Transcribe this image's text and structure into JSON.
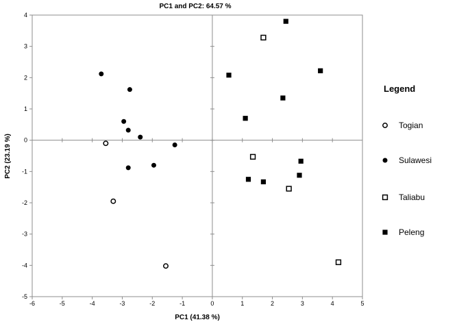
{
  "chart_data": {
    "type": "scatter",
    "title": "PC1 and PC2: 64.57 %",
    "xlabel": "PC1 (41.38 %)",
    "ylabel": "PC2 (23.19 %)",
    "xlim": [
      -6,
      5
    ],
    "ylim": [
      -5,
      4
    ],
    "x_ticks": [
      -6,
      -5,
      -4,
      -3,
      -2,
      -1,
      0,
      1,
      2,
      3,
      4,
      5
    ],
    "y_ticks": [
      4,
      3,
      2,
      1,
      0,
      -1,
      -2,
      -3,
      -4,
      -5
    ],
    "grid": false,
    "plot_border": true,
    "zero_axes": true,
    "legend": {
      "title": "Legend",
      "position": "right"
    },
    "series": [
      {
        "name": "Togian",
        "marker": "circle-open",
        "color": "#000000",
        "points": [
          {
            "x": -3.55,
            "y": -0.1
          },
          {
            "x": -3.3,
            "y": -1.95
          },
          {
            "x": -1.55,
            "y": -4.02
          }
        ]
      },
      {
        "name": "Sulawesi",
        "marker": "circle-filled",
        "color": "#000000",
        "points": [
          {
            "x": -3.7,
            "y": 2.12
          },
          {
            "x": -2.75,
            "y": 1.62
          },
          {
            "x": -2.95,
            "y": 0.6
          },
          {
            "x": -2.8,
            "y": 0.32
          },
          {
            "x": -2.4,
            "y": 0.1
          },
          {
            "x": -1.25,
            "y": -0.15
          },
          {
            "x": -2.8,
            "y": -0.88
          },
          {
            "x": -1.95,
            "y": -0.8
          }
        ]
      },
      {
        "name": "Taliabu",
        "marker": "square-open",
        "color": "#000000",
        "points": [
          {
            "x": 1.7,
            "y": 3.28
          },
          {
            "x": 1.35,
            "y": -0.53
          },
          {
            "x": 2.55,
            "y": -1.55
          },
          {
            "x": 4.2,
            "y": -3.9
          }
        ]
      },
      {
        "name": "Peleng",
        "marker": "square-filled",
        "color": "#000000",
        "points": [
          {
            "x": 2.45,
            "y": 3.8
          },
          {
            "x": 0.55,
            "y": 2.08
          },
          {
            "x": 3.6,
            "y": 2.22
          },
          {
            "x": 2.35,
            "y": 1.35
          },
          {
            "x": 1.1,
            "y": 0.7
          },
          {
            "x": 2.95,
            "y": -0.67
          },
          {
            "x": 1.2,
            "y": -1.25
          },
          {
            "x": 1.7,
            "y": -1.33
          },
          {
            "x": 2.9,
            "y": -1.12
          }
        ]
      }
    ]
  }
}
